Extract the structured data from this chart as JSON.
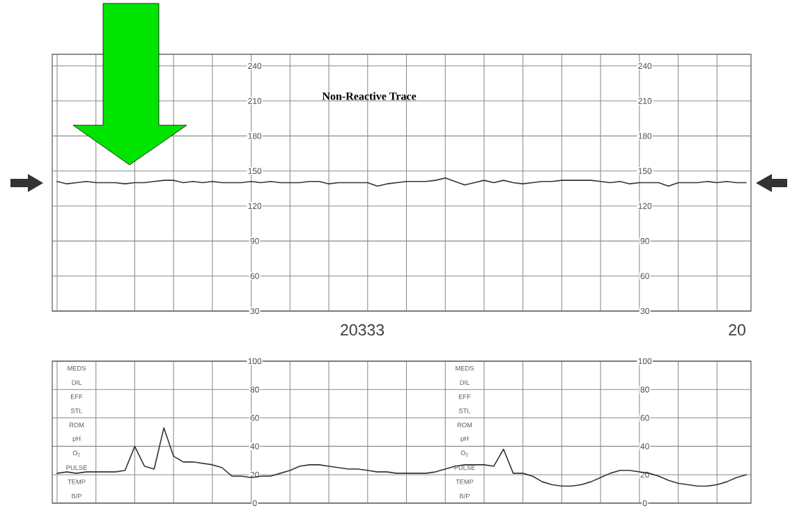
{
  "chart_data": [
    {
      "type": "line",
      "title": "Non-Reactive Trace",
      "categories": [
        null,
        null,
        null,
        null,
        null,
        null,
        null,
        null,
        null,
        null,
        null,
        null,
        null,
        null,
        null,
        null,
        null,
        null,
        null,
        null,
        null,
        null,
        null,
        null,
        null,
        null,
        null,
        null,
        null,
        null,
        null,
        null,
        null,
        null,
        null,
        null,
        null,
        null,
        null,
        null,
        null,
        null,
        null,
        null,
        null,
        null,
        null,
        null,
        null,
        null,
        null,
        null,
        null,
        null,
        null,
        null,
        null,
        null,
        null,
        null,
        null,
        null,
        null,
        null,
        null,
        null,
        null,
        null,
        null,
        null,
        null,
        null
      ],
      "series": [
        {
          "color": "#333333",
          "values": [
            141,
            139,
            140,
            141,
            140,
            140,
            140,
            139,
            140,
            140,
            141,
            142,
            142,
            140,
            141,
            140,
            141,
            140,
            140,
            140,
            141,
            140,
            141,
            140,
            140,
            140,
            141,
            141,
            139,
            140,
            140,
            140,
            140,
            137,
            139,
            140,
            141,
            141,
            141,
            142,
            144,
            141,
            138,
            140,
            142,
            140,
            142,
            140,
            139,
            140,
            141,
            141,
            142,
            142,
            142,
            142,
            141,
            140,
            141,
            139,
            140,
            140,
            140,
            137,
            140,
            140,
            140,
            141,
            140,
            141,
            140,
            140
          ]
        }
      ],
      "ylim": [
        30,
        250
      ],
      "yticks": [
        30,
        60,
        90,
        120,
        150,
        180,
        210,
        240
      ],
      "y2lim": [
        30,
        250
      ],
      "y2ticks": [
        30,
        60,
        90,
        120,
        150,
        180,
        210,
        240
      ],
      "grid": true,
      "tick_labels": "y",
      "marker": "none",
      "annotations": [
        "20333",
        "20"
      ]
    },
    {
      "type": "line",
      "categories": [
        null,
        null,
        null,
        null,
        null,
        null,
        null,
        null,
        null,
        null,
        null,
        null,
        null,
        null,
        null,
        null,
        null,
        null,
        null,
        null,
        null,
        null,
        null,
        null,
        null,
        null,
        null,
        null,
        null,
        null,
        null,
        null,
        null,
        null,
        null,
        null,
        null,
        null,
        null,
        null,
        null,
        null,
        null,
        null,
        null,
        null,
        null,
        null,
        null,
        null,
        null,
        null,
        null,
        null,
        null,
        null,
        null,
        null,
        null,
        null,
        null,
        null,
        null,
        null,
        null,
        null,
        null,
        null,
        null,
        null,
        null,
        null
      ],
      "series": [
        {
          "color": "#333333",
          "values": [
            21,
            22,
            21,
            22,
            22,
            22,
            22,
            23,
            40,
            26,
            24,
            53,
            33,
            29,
            29,
            28,
            27,
            25,
            19,
            19,
            18,
            19,
            19,
            21,
            23,
            26,
            27,
            27,
            26,
            25,
            24,
            24,
            23,
            22,
            22,
            21,
            21,
            21,
            21,
            22,
            24,
            26,
            27,
            27,
            27,
            26,
            38,
            21,
            21,
            19,
            15,
            13,
            12,
            12,
            13,
            15,
            18,
            21,
            23,
            23,
            22,
            21,
            19,
            16,
            14,
            13,
            12,
            12,
            13,
            15,
            18,
            20
          ]
        }
      ],
      "ylim": [
        0,
        100
      ],
      "yticks": [
        0,
        20,
        40,
        60,
        80,
        100
      ],
      "y2lim": [
        0,
        100
      ],
      "y2ticks": [
        0,
        20,
        40,
        60,
        80,
        100
      ],
      "grid": true,
      "tick_labels": "y",
      "marker": "none",
      "annotations": [
        "MEDS",
        "DIL",
        "EFF",
        "STL",
        "ROM",
        "pH",
        "O$_{2}$",
        "PULSE",
        "TEMP",
        "B/P"
      ]
    }
  ]
}
